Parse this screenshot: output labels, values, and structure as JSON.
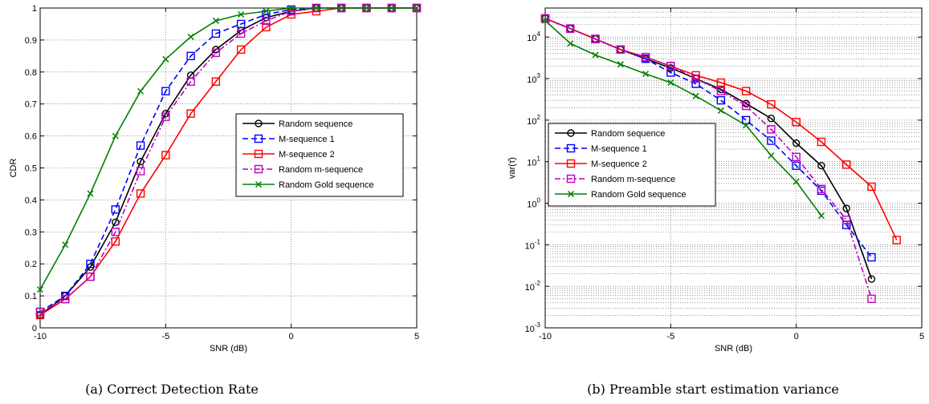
{
  "chart_data": [
    {
      "type": "line",
      "caption": "(a) Correct Detection Rate",
      "xlabel": "SNR (dB)",
      "ylabel": "CDR",
      "xlim": [
        -10,
        5
      ],
      "ylim": [
        0,
        1
      ],
      "xticks": [
        -10,
        -5,
        0,
        5
      ],
      "yticks": [
        0,
        0.1,
        0.2,
        0.3,
        0.4,
        0.5,
        0.6,
        0.7,
        0.8,
        0.9,
        1
      ],
      "yscale": "linear",
      "grid": true,
      "legend_position": "right",
      "x": [
        -10,
        -9,
        -8,
        -7,
        -6,
        -5,
        -4,
        -3,
        -2,
        -1,
        0,
        1,
        2,
        3,
        4,
        5
      ],
      "series": [
        {
          "name": "Random sequence",
          "color": "#000000",
          "dash": "solid",
          "marker": "circle",
          "values": [
            0.04,
            0.1,
            0.19,
            0.33,
            0.52,
            0.67,
            0.79,
            0.87,
            0.93,
            0.97,
            0.99,
            1.0,
            1.0,
            1.0,
            1.0,
            1.0
          ]
        },
        {
          "name": "M-sequence 1",
          "color": "#0000ff",
          "dash": "dashed",
          "marker": "square",
          "values": [
            0.05,
            0.1,
            0.2,
            0.37,
            0.57,
            0.74,
            0.85,
            0.92,
            0.95,
            0.98,
            0.995,
            1.0,
            1.0,
            1.0,
            1.0,
            1.0
          ]
        },
        {
          "name": "M-sequence 2",
          "color": "#ff0000",
          "dash": "solid",
          "marker": "square",
          "values": [
            0.04,
            0.09,
            0.16,
            0.27,
            0.42,
            0.54,
            0.67,
            0.77,
            0.87,
            0.94,
            0.98,
            0.99,
            1.0,
            1.0,
            1.0,
            1.0
          ]
        },
        {
          "name": "Random m-sequence",
          "color": "#c000c0",
          "dash": "dashdot",
          "marker": "square",
          "values": [
            0.05,
            0.09,
            0.16,
            0.3,
            0.49,
            0.66,
            0.77,
            0.86,
            0.92,
            0.96,
            0.99,
            1.0,
            1.0,
            1.0,
            1.0,
            1.0
          ]
        },
        {
          "name": "Random Gold sequence",
          "color": "#008000",
          "dash": "solid",
          "marker": "x",
          "values": [
            0.12,
            0.26,
            0.42,
            0.6,
            0.74,
            0.84,
            0.91,
            0.96,
            0.98,
            0.99,
            1.0,
            1.0,
            1.0,
            1.0,
            1.0,
            1.0
          ]
        }
      ]
    },
    {
      "type": "line",
      "caption": "(b) Preamble start estimation variance",
      "xlabel": "SNR (dB)",
      "ylabel": "var(τ̂)",
      "xlim": [
        -10,
        5
      ],
      "ylim": [
        0.001,
        50000
      ],
      "xticks": [
        -10,
        -5,
        0,
        5
      ],
      "yticks": [
        0.001,
        0.01,
        0.1,
        1,
        10,
        100,
        1000,
        10000
      ],
      "ytick_labels": [
        {
          "base": "10",
          "exp": "-3"
        },
        {
          "base": "10",
          "exp": "-2"
        },
        {
          "base": "10",
          "exp": "-1"
        },
        {
          "base": "10",
          "exp": "0"
        },
        {
          "base": "10",
          "exp": "1"
        },
        {
          "base": "10",
          "exp": "2"
        },
        {
          "base": "10",
          "exp": "3"
        },
        {
          "base": "10",
          "exp": "4"
        }
      ],
      "yscale": "log",
      "grid": true,
      "legend_position": "left",
      "series": [
        {
          "name": "Random sequence",
          "color": "#000000",
          "dash": "solid",
          "marker": "circle",
          "x": [
            -10,
            -9,
            -8,
            -7,
            -6,
            -5,
            -4,
            -3,
            -2,
            -1,
            0,
            1,
            2,
            3
          ],
          "values": [
            28000,
            16000,
            9000,
            5000,
            3000,
            1800,
            1000,
            550,
            250,
            110,
            28,
            8,
            0.75,
            0.015
          ]
        },
        {
          "name": "M-sequence 1",
          "color": "#0000ff",
          "dash": "dashed",
          "marker": "square",
          "x": [
            -10,
            -9,
            -8,
            -7,
            -6,
            -5,
            -4,
            -3,
            -2,
            -1,
            0,
            1,
            2,
            3
          ],
          "values": [
            28000,
            16000,
            9000,
            5000,
            3000,
            1400,
            750,
            300,
            100,
            32,
            8,
            2,
            0.3,
            0.05
          ]
        },
        {
          "name": "M-sequence 2",
          "color": "#ff0000",
          "dash": "solid",
          "marker": "square",
          "x": [
            -10,
            -9,
            -8,
            -7,
            -6,
            -5,
            -4,
            -3,
            -2,
            -1,
            0,
            1,
            2,
            3,
            4
          ],
          "values": [
            28000,
            16000,
            9000,
            5000,
            3300,
            2000,
            1200,
            800,
            500,
            240,
            90,
            30,
            8.5,
            2.5,
            0.13
          ]
        },
        {
          "name": "Random m-sequence",
          "color": "#c000c0",
          "dash": "dashdot",
          "marker": "square",
          "x": [
            -10,
            -9,
            -8,
            -7,
            -6,
            -5,
            -4,
            -3,
            -2,
            -1,
            0,
            1,
            2,
            3
          ],
          "values": [
            28000,
            16000,
            9000,
            5000,
            3300,
            2000,
            1000,
            500,
            220,
            60,
            13,
            2.2,
            0.4,
            0.005
          ]
        },
        {
          "name": "Random Gold sequence",
          "color": "#008000",
          "dash": "solid",
          "marker": "x",
          "x": [
            -10,
            -9,
            -8,
            -7,
            -6,
            -5,
            -4,
            -3,
            -2,
            -1,
            0,
            1
          ],
          "values": [
            25000,
            7000,
            3700,
            2200,
            1300,
            800,
            380,
            170,
            75,
            14,
            3.3,
            0.5
          ]
        }
      ]
    }
  ]
}
